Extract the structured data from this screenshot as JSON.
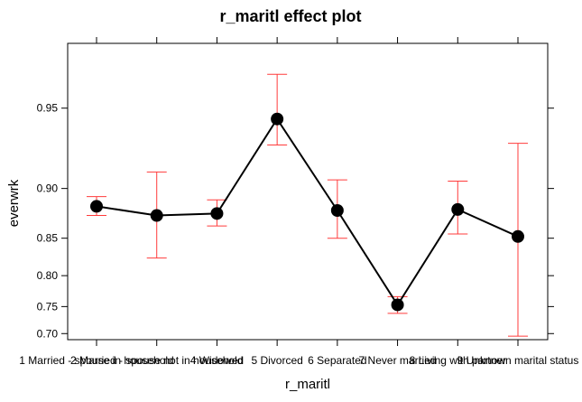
{
  "chart_data": {
    "type": "line",
    "title": "r_maritl effect plot",
    "xlabel": "r_maritl",
    "ylabel": "everwrk",
    "categories": [
      "1 Married - spouse in household",
      "2 Married - spouse not in household",
      "4 Widowed",
      "5 Divorced",
      "6 Separated",
      "7 Never married",
      "8 Living with partner",
      "9 Unknown marital status"
    ],
    "values": [
      0.884,
      0.875,
      0.877,
      0.945,
      0.88,
      0.753,
      0.881,
      0.852
    ],
    "lower": [
      0.875,
      0.825,
      0.864,
      0.931,
      0.85,
      0.738,
      0.855,
      0.695
    ],
    "upper": [
      0.893,
      0.913,
      0.89,
      0.963,
      0.907,
      0.767,
      0.906,
      0.932
    ],
    "yticks": [
      0.7,
      0.75,
      0.8,
      0.85,
      0.9,
      0.95
    ],
    "ytick_labels": [
      "0.70",
      "0.75",
      "0.80",
      "0.85",
      "0.90",
      "0.95"
    ],
    "ylim": [
      0.688,
      0.972
    ],
    "y_scale": "logit",
    "grid": false,
    "colors": {
      "line": "#000000",
      "error_bars": "#ff3b3b",
      "points": "#000000"
    }
  }
}
